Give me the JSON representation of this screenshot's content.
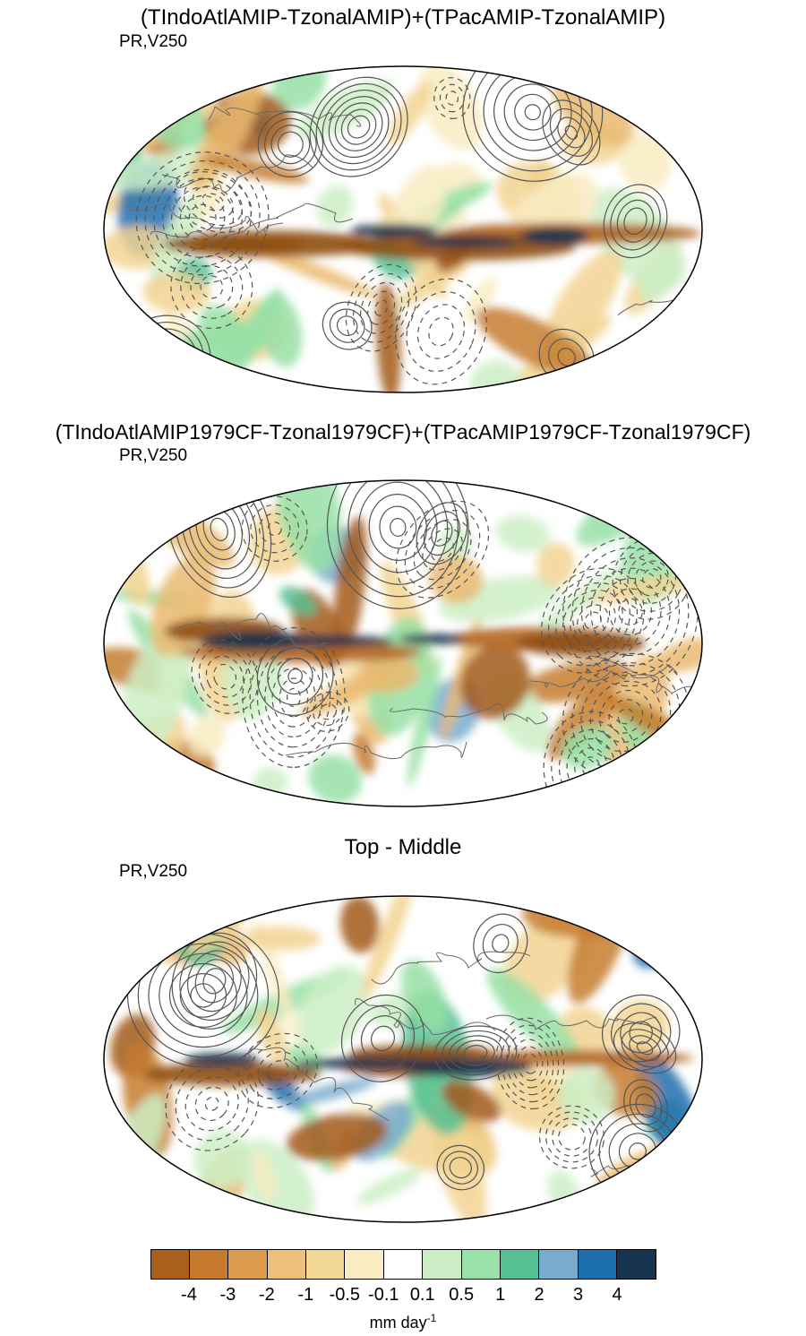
{
  "figure": {
    "panels": [
      {
        "title": "(TIndoAtlAMIP-TzonalAMIP)+(TPacAMIP-TzonalAMIP)",
        "field_label": "PR,V250"
      },
      {
        "title": "(TIndoAtlAMIP1979CF-Tzonal1979CF)+(TPacAMIP1979CF-Tzonal1979CF)",
        "field_label": "PR,V250"
      },
      {
        "title": "Top - Middle",
        "field_label": "PR,V250"
      }
    ],
    "colorbar": {
      "tick_labels": [
        "-4",
        "-3",
        "-2",
        "-1",
        "-0.5",
        "-0.1",
        "0.1",
        "0.5",
        "1",
        "2",
        "3",
        "4"
      ],
      "colors": [
        "#a8601c",
        "#c57a2d",
        "#dd9b50",
        "#ecbf7d",
        "#f3d795",
        "#f9ecc3",
        "#ffffff",
        "#ccedc5",
        "#99e1a8",
        "#57c193",
        "#79abce",
        "#1d6fae",
        "#17344e"
      ],
      "unit_base": "mm day",
      "unit_sup": "-1"
    }
  },
  "chart_data": {
    "type": "heatmap",
    "subtype": "global-map-contour-panels",
    "projection": "global elliptical (Winkel-tripel-like), three stacked panels",
    "panels": [
      {
        "title": "(TIndoAtlAMIP-TzonalAMIP)+(TPacAMIP-TzonalAMIP)",
        "shaded_field": "PR",
        "contour_field": "V250"
      },
      {
        "title": "(TIndoAtlAMIP1979CF-Tzonal1979CF)+(TPacAMIP1979CF-Tzonal1979CF)",
        "shaded_field": "PR",
        "contour_field": "V250"
      },
      {
        "title": "Top - Middle",
        "shaded_field": "PR",
        "contour_field": "V250"
      }
    ],
    "colorbar": {
      "levels": [
        -4,
        -3,
        -2,
        -1,
        -0.5,
        -0.1,
        0.1,
        0.5,
        1,
        2,
        3,
        4
      ],
      "colors": [
        "#a8601c",
        "#c57a2d",
        "#dd9b50",
        "#ecbf7d",
        "#f3d795",
        "#f9ecc3",
        "#ffffff",
        "#ccedc5",
        "#99e1a8",
        "#57c193",
        "#79abce",
        "#1d6fae",
        "#17344e"
      ],
      "units": "mm day⁻¹"
    },
    "notes": "Shading shows precipitation anomalies (browns negative, greens/blues positive); gray contours show V250 (solid positive, dashed negative)."
  }
}
